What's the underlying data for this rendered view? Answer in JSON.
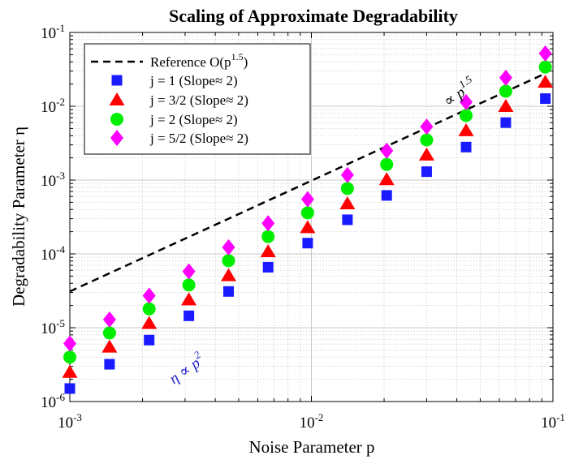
{
  "chart_data": {
    "type": "scatter",
    "title": "Scaling of Approximate Degradability",
    "xlabel": "Noise Parameter p",
    "ylabel": "Degradability Parameter η",
    "xscale": "log",
    "yscale": "log",
    "xlim": [
      0.001,
      0.1
    ],
    "ylim": [
      1e-06,
      0.1
    ],
    "grid": true,
    "legend_position": "top-left",
    "x_ticks": [
      {
        "base": "10",
        "exp": "-3"
      },
      {
        "base": "10",
        "exp": "-2"
      },
      {
        "base": "10",
        "exp": "-1"
      }
    ],
    "y_ticks": [
      {
        "base": "10",
        "exp": "-6"
      },
      {
        "base": "10",
        "exp": "-5"
      },
      {
        "base": "10",
        "exp": "-4"
      },
      {
        "base": "10",
        "exp": "-3"
      },
      {
        "base": "10",
        "exp": "-2"
      },
      {
        "base": "10",
        "exp": "-1"
      }
    ],
    "x": [
      0.001,
      0.00146,
      0.00213,
      0.00311,
      0.00454,
      0.00662,
      0.00965,
      0.0141,
      0.0205,
      0.03,
      0.0437,
      0.0638,
      0.093
    ],
    "reference": {
      "name": "Reference O(p^1.5)",
      "name_base": "Reference O(p",
      "name_sup": "1.5",
      "name_tail": ")",
      "style": "dashed",
      "color": "#000000",
      "x": [
        0.001,
        0.093
      ],
      "y": [
        3.1e-05,
        0.0278
      ]
    },
    "series": [
      {
        "name": "j = 1 (Slope≈ 2)",
        "marker": "square",
        "color": "#1a1aff",
        "values": [
          1.5e-06,
          3.2e-06,
          6.8e-06,
          1.45e-05,
          3.1e-05,
          6.6e-05,
          0.00014,
          0.00029,
          0.00062,
          0.0013,
          0.0028,
          0.006,
          0.0127
        ]
      },
      {
        "name": "j = 3/2 (Slope≈ 2)",
        "marker": "triangle",
        "color": "#ff0000",
        "values": [
          2.5e-06,
          5.5e-06,
          1.15e-05,
          2.4e-05,
          5.1e-05,
          0.000108,
          0.000228,
          0.00048,
          0.00102,
          0.0022,
          0.0047,
          0.01,
          0.0213
        ]
      },
      {
        "name": "j = 2 (Slope≈ 2)",
        "marker": "circle",
        "color": "#00ee00",
        "values": [
          4e-06,
          8.5e-06,
          1.8e-05,
          3.8e-05,
          8.1e-05,
          0.000172,
          0.00036,
          0.00077,
          0.00163,
          0.0035,
          0.0075,
          0.016,
          0.034
        ]
      },
      {
        "name": "j = 5/2 (Slope≈ 2)",
        "marker": "diamond",
        "color": "#ff00ff",
        "values": [
          6.1e-06,
          1.29e-05,
          2.72e-05,
          5.78e-05,
          0.000123,
          0.00026,
          0.00055,
          0.00117,
          0.0025,
          0.0053,
          0.0114,
          0.0243,
          0.052
        ]
      }
    ],
    "annotations": [
      {
        "base": "∝ p",
        "sup": "1.5",
        "color": "#000000"
      },
      {
        "base": "η ∝ p",
        "sup": "2",
        "color": "#1a1acc"
      }
    ]
  }
}
